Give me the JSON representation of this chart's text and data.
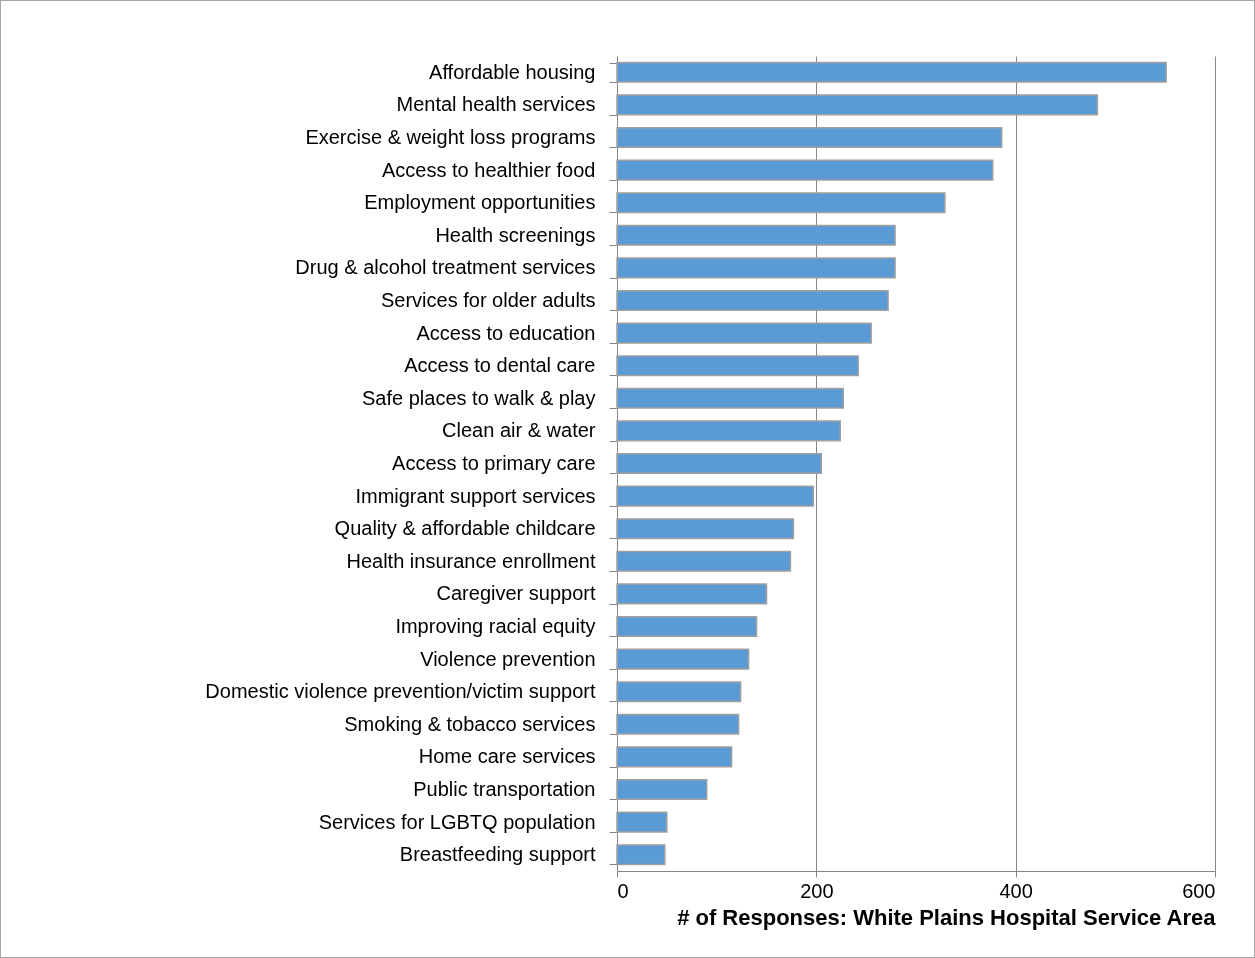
{
  "chart_data": {
    "type": "bar",
    "orientation": "horizontal",
    "xlabel": "# of Responses: White Plains Hospital Service Area",
    "categories": [
      "Affordable housing",
      "Mental health services",
      "Exercise & weight loss programs",
      "Access to healthier food",
      "Employment opportunities",
      "Health screenings",
      "Drug & alcohol treatment services",
      "Services for older adults",
      "Access to education",
      "Access to dental care",
      "Safe places to walk & play",
      "Clean air & water",
      "Access to primary care",
      "Immigrant support services",
      "Quality & affordable childcare",
      "Health insurance enrollment",
      "Caregiver support",
      "Improving racial equity",
      "Violence prevention",
      "Domestic violence prevention/victim support",
      "Smoking & tobacco services",
      "Home care services",
      "Public transportation",
      "Services for LGBTQ population",
      "Breastfeeding support"
    ],
    "values": [
      551,
      482,
      386,
      377,
      329,
      279,
      279,
      272,
      255,
      242,
      227,
      224,
      205,
      197,
      177,
      174,
      150,
      140,
      132,
      124,
      122,
      115,
      90,
      50,
      48
    ],
    "color": "#5b9bd5",
    "xlim": [
      0,
      600
    ],
    "xticks": [
      0,
      200,
      400,
      600
    ],
    "grid": "x"
  }
}
